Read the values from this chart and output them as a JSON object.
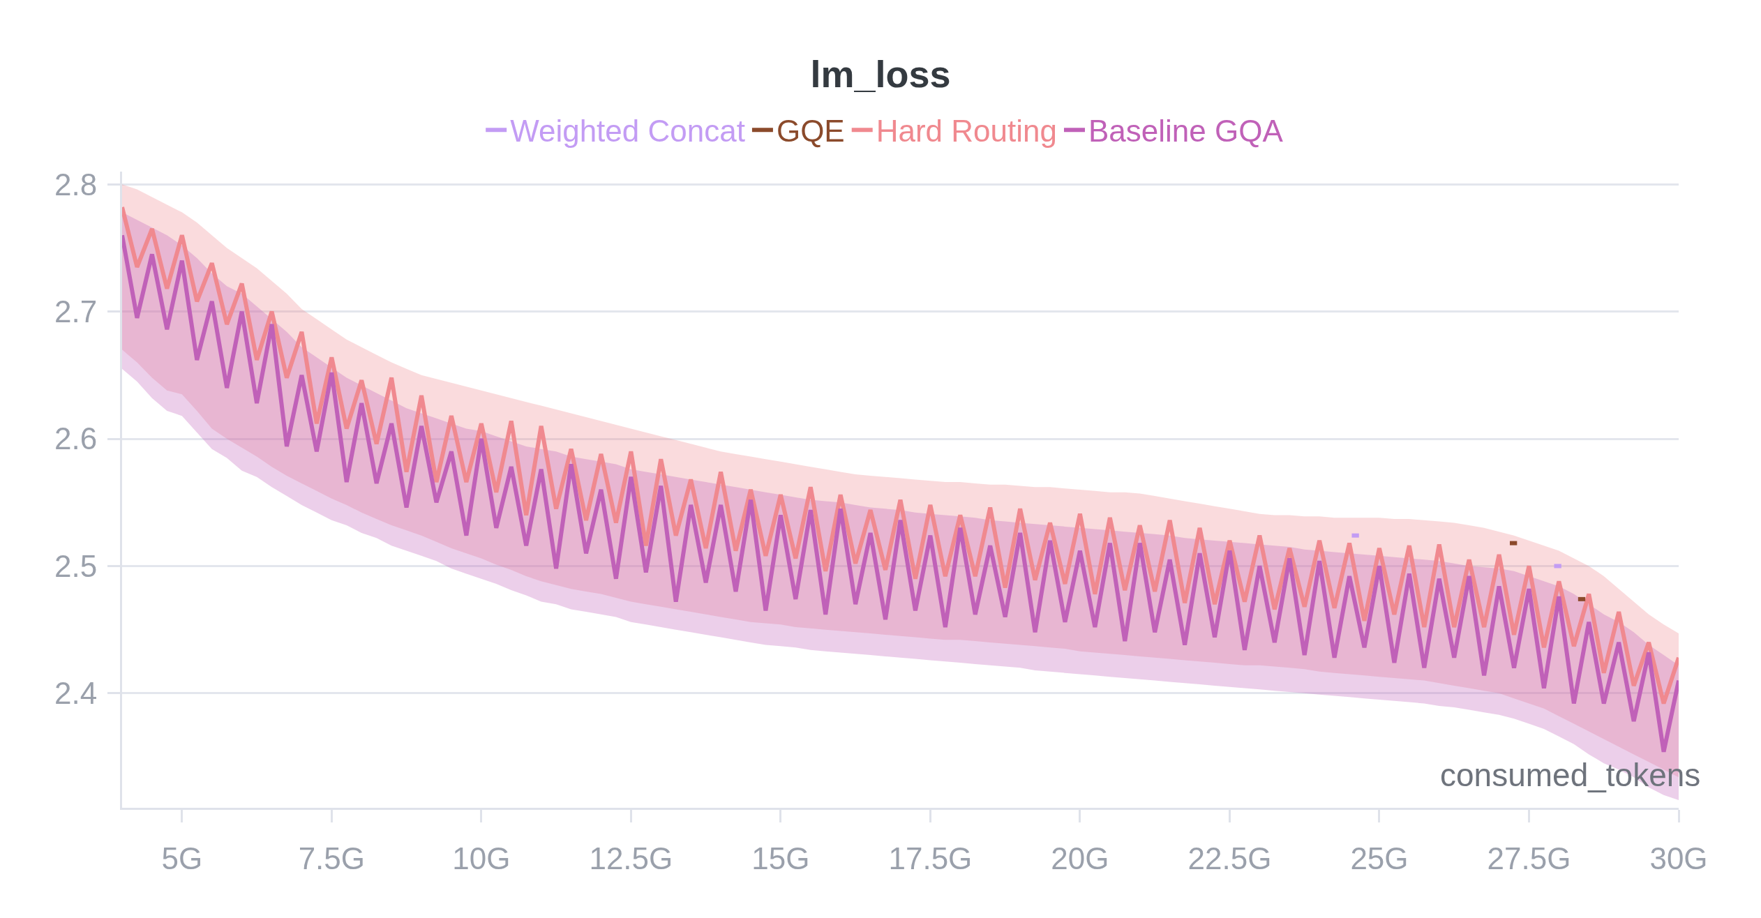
{
  "chart_data": {
    "type": "line",
    "title": "lm_loss",
    "xlabel": "consumed_tokens",
    "x": [
      4,
      4.25,
      4.5,
      4.75,
      5,
      5.25,
      5.5,
      5.75,
      6,
      6.25,
      6.5,
      6.75,
      7,
      7.25,
      7.5,
      7.75,
      8,
      8.25,
      8.5,
      8.75,
      9,
      9.25,
      9.5,
      9.75,
      10,
      10.25,
      10.5,
      10.75,
      11,
      11.25,
      11.5,
      11.75,
      12,
      12.25,
      12.5,
      12.75,
      13,
      13.25,
      13.5,
      13.75,
      14,
      14.25,
      14.5,
      14.75,
      15,
      15.25,
      15.5,
      15.75,
      16,
      16.25,
      16.5,
      16.75,
      17,
      17.25,
      17.5,
      17.75,
      18,
      18.25,
      18.5,
      18.75,
      19,
      19.25,
      19.5,
      19.75,
      20,
      20.25,
      20.5,
      20.75,
      21,
      21.25,
      21.5,
      21.75,
      22,
      22.25,
      22.5,
      22.75,
      23,
      23.25,
      23.5,
      23.75,
      24,
      24.25,
      24.5,
      24.75,
      25,
      25.25,
      25.5,
      25.75,
      26,
      26.25,
      26.5,
      26.75,
      27,
      27.25,
      27.5,
      27.75,
      28,
      28.25,
      28.5,
      28.75,
      29,
      29.25,
      29.5,
      29.75,
      30
    ],
    "series": [
      {
        "name": "Weighted Concat",
        "color": "#c39cf4",
        "x": [
          24.54,
          24.66,
          26.3,
          27.92,
          28.04
        ],
        "values": [
          2.524,
          2.524,
          null,
          2.5,
          2.5
        ]
      },
      {
        "name": "GQE",
        "color": "#8b4a2b",
        "x": [
          27.18,
          27.3,
          27.8,
          28.32,
          28.44
        ],
        "values": [
          2.518,
          2.518,
          null,
          2.474,
          2.474
        ]
      },
      {
        "name": "Hard Routing",
        "color": "#f0898f",
        "values": [
          2.782,
          2.735,
          2.765,
          2.718,
          2.76,
          2.708,
          2.738,
          2.69,
          2.722,
          2.662,
          2.7,
          2.648,
          2.684,
          2.612,
          2.664,
          2.608,
          2.646,
          2.596,
          2.648,
          2.574,
          2.634,
          2.566,
          2.618,
          2.566,
          2.612,
          2.558,
          2.614,
          2.54,
          2.61,
          2.545,
          2.592,
          2.536,
          2.588,
          2.534,
          2.59,
          2.516,
          2.584,
          2.524,
          2.568,
          2.514,
          2.574,
          2.512,
          2.56,
          2.508,
          2.556,
          2.506,
          2.562,
          2.496,
          2.556,
          2.502,
          2.544,
          2.497,
          2.552,
          2.49,
          2.548,
          2.492,
          2.54,
          2.492,
          2.546,
          2.483,
          2.545,
          2.489,
          2.534,
          2.486,
          2.541,
          2.478,
          2.538,
          2.481,
          2.532,
          2.48,
          2.536,
          2.471,
          2.53,
          2.47,
          2.52,
          2.472,
          2.524,
          2.466,
          2.514,
          2.468,
          2.52,
          2.467,
          2.518,
          2.457,
          2.514,
          2.462,
          2.516,
          2.452,
          2.517,
          2.452,
          2.505,
          2.452,
          2.509,
          2.446,
          2.5,
          2.436,
          2.488,
          2.437,
          2.478,
          2.416,
          2.464,
          2.406,
          2.44,
          2.392,
          2.428
        ],
        "upper": [
          2.8,
          2.796,
          2.79,
          2.784,
          2.778,
          2.77,
          2.76,
          2.75,
          2.742,
          2.734,
          2.724,
          2.714,
          2.702,
          2.694,
          2.686,
          2.678,
          2.672,
          2.666,
          2.66,
          2.655,
          2.65,
          2.647,
          2.644,
          2.641,
          2.638,
          2.635,
          2.632,
          2.629,
          2.626,
          2.623,
          2.62,
          2.617,
          2.614,
          2.611,
          2.608,
          2.605,
          2.602,
          2.599,
          2.596,
          2.593,
          2.59,
          2.588,
          2.586,
          2.584,
          2.582,
          2.58,
          2.578,
          2.576,
          2.574,
          2.572,
          2.571,
          2.57,
          2.569,
          2.568,
          2.567,
          2.566,
          2.566,
          2.565,
          2.564,
          2.564,
          2.563,
          2.562,
          2.562,
          2.561,
          2.56,
          2.559,
          2.558,
          2.558,
          2.557,
          2.555,
          2.553,
          2.551,
          2.549,
          2.547,
          2.545,
          2.543,
          2.541,
          2.54,
          2.54,
          2.539,
          2.539,
          2.538,
          2.538,
          2.538,
          2.538,
          2.537,
          2.537,
          2.536,
          2.535,
          2.534,
          2.532,
          2.53,
          2.527,
          2.524,
          2.52,
          2.516,
          2.512,
          2.506,
          2.5,
          2.492,
          2.482,
          2.472,
          2.462,
          2.454,
          2.447
        ],
        "lower": [
          2.67,
          2.66,
          2.648,
          2.638,
          2.635,
          2.622,
          2.608,
          2.6,
          2.593,
          2.586,
          2.578,
          2.571,
          2.565,
          2.559,
          2.553,
          2.548,
          2.542,
          2.537,
          2.532,
          2.528,
          2.524,
          2.519,
          2.514,
          2.51,
          2.506,
          2.501,
          2.497,
          2.492,
          2.488,
          2.485,
          2.482,
          2.48,
          2.478,
          2.475,
          2.472,
          2.47,
          2.468,
          2.466,
          2.464,
          2.462,
          2.46,
          2.458,
          2.456,
          2.455,
          2.454,
          2.452,
          2.451,
          2.45,
          2.449,
          2.448,
          2.447,
          2.446,
          2.445,
          2.444,
          2.443,
          2.442,
          2.442,
          2.441,
          2.44,
          2.439,
          2.438,
          2.437,
          2.436,
          2.435,
          2.433,
          2.432,
          2.431,
          2.43,
          2.429,
          2.428,
          2.427,
          2.426,
          2.425,
          2.424,
          2.423,
          2.422,
          2.422,
          2.421,
          2.42,
          2.419,
          2.417,
          2.416,
          2.415,
          2.414,
          2.413,
          2.412,
          2.411,
          2.41,
          2.408,
          2.406,
          2.404,
          2.402,
          2.4,
          2.396,
          2.392,
          2.388,
          2.382,
          2.376,
          2.37,
          2.364,
          2.358,
          2.352,
          2.346,
          2.34,
          2.334
        ]
      },
      {
        "name": "Baseline GQA",
        "color": "#c061b8",
        "values": [
          2.76,
          2.695,
          2.745,
          2.686,
          2.74,
          2.662,
          2.708,
          2.64,
          2.7,
          2.628,
          2.69,
          2.594,
          2.65,
          2.59,
          2.652,
          2.566,
          2.628,
          2.565,
          2.612,
          2.546,
          2.61,
          2.55,
          2.59,
          2.524,
          2.6,
          2.53,
          2.578,
          2.516,
          2.576,
          2.498,
          2.58,
          2.51,
          2.56,
          2.49,
          2.57,
          2.495,
          2.563,
          2.472,
          2.548,
          2.487,
          2.548,
          2.48,
          2.552,
          2.465,
          2.54,
          2.474,
          2.544,
          2.462,
          2.545,
          2.47,
          2.526,
          2.458,
          2.536,
          2.465,
          2.524,
          2.452,
          2.53,
          2.462,
          2.516,
          2.46,
          2.526,
          2.448,
          2.52,
          2.456,
          2.512,
          2.452,
          2.518,
          2.441,
          2.518,
          2.448,
          2.505,
          2.438,
          2.51,
          2.444,
          2.512,
          2.434,
          2.5,
          2.44,
          2.506,
          2.43,
          2.504,
          2.428,
          2.492,
          2.436,
          2.5,
          2.424,
          2.494,
          2.42,
          2.49,
          2.428,
          2.492,
          2.414,
          2.484,
          2.42,
          2.482,
          2.404,
          2.476,
          2.392,
          2.456,
          2.392,
          2.44,
          2.378,
          2.432,
          2.354,
          2.41
        ],
        "upper": [
          2.778,
          2.772,
          2.766,
          2.76,
          2.752,
          2.742,
          2.73,
          2.72,
          2.714,
          2.704,
          2.694,
          2.684,
          2.672,
          2.664,
          2.656,
          2.648,
          2.642,
          2.636,
          2.63,
          2.624,
          2.62,
          2.616,
          2.612,
          2.608,
          2.606,
          2.602,
          2.598,
          2.594,
          2.592,
          2.59,
          2.586,
          2.584,
          2.582,
          2.58,
          2.576,
          2.574,
          2.572,
          2.57,
          2.568,
          2.566,
          2.564,
          2.562,
          2.56,
          2.558,
          2.556,
          2.554,
          2.552,
          2.551,
          2.55,
          2.548,
          2.546,
          2.545,
          2.544,
          2.542,
          2.541,
          2.54,
          2.539,
          2.538,
          2.536,
          2.535,
          2.534,
          2.533,
          2.532,
          2.531,
          2.53,
          2.529,
          2.528,
          2.527,
          2.526,
          2.525,
          2.524,
          2.522,
          2.521,
          2.52,
          2.519,
          2.518,
          2.517,
          2.516,
          2.515,
          2.513,
          2.512,
          2.511,
          2.51,
          2.509,
          2.508,
          2.507,
          2.506,
          2.505,
          2.504,
          2.502,
          2.5,
          2.499,
          2.498,
          2.496,
          2.492,
          2.488,
          2.484,
          2.478,
          2.47,
          2.462,
          2.456,
          2.448,
          2.438,
          2.43,
          2.422
        ],
        "lower": [
          2.655,
          2.645,
          2.632,
          2.622,
          2.618,
          2.605,
          2.592,
          2.585,
          2.575,
          2.57,
          2.562,
          2.555,
          2.548,
          2.542,
          2.536,
          2.532,
          2.526,
          2.522,
          2.516,
          2.512,
          2.508,
          2.504,
          2.498,
          2.494,
          2.49,
          2.486,
          2.481,
          2.477,
          2.472,
          2.47,
          2.466,
          2.464,
          2.462,
          2.46,
          2.456,
          2.454,
          2.452,
          2.45,
          2.448,
          2.446,
          2.444,
          2.442,
          2.44,
          2.438,
          2.437,
          2.436,
          2.434,
          2.433,
          2.432,
          2.431,
          2.43,
          2.429,
          2.428,
          2.427,
          2.426,
          2.425,
          2.424,
          2.423,
          2.422,
          2.421,
          2.42,
          2.418,
          2.417,
          2.416,
          2.415,
          2.414,
          2.413,
          2.412,
          2.411,
          2.41,
          2.409,
          2.408,
          2.407,
          2.406,
          2.405,
          2.404,
          2.403,
          2.402,
          2.401,
          2.4,
          2.399,
          2.398,
          2.397,
          2.396,
          2.395,
          2.394,
          2.393,
          2.392,
          2.39,
          2.389,
          2.387,
          2.385,
          2.383,
          2.38,
          2.376,
          2.372,
          2.366,
          2.36,
          2.352,
          2.345,
          2.34,
          2.334,
          2.326,
          2.32,
          2.316
        ]
      }
    ],
    "xlim": [
      4,
      30
    ],
    "xticks": [
      {
        "value": 5,
        "label": "5G"
      },
      {
        "value": 7.5,
        "label": "7.5G"
      },
      {
        "value": 10,
        "label": "10G"
      },
      {
        "value": 12.5,
        "label": "12.5G"
      },
      {
        "value": 15,
        "label": "15G"
      },
      {
        "value": 17.5,
        "label": "17.5G"
      },
      {
        "value": 20,
        "label": "20G"
      },
      {
        "value": 22.5,
        "label": "22.5G"
      },
      {
        "value": 25,
        "label": "25G"
      },
      {
        "value": 27.5,
        "label": "27.5G"
      },
      {
        "value": 30,
        "label": "30G"
      }
    ],
    "ylim": [
      2.31,
      2.81
    ],
    "yticks": [
      2.4,
      2.5,
      2.6,
      2.7,
      2.8
    ],
    "grid": "y",
    "legend": "top"
  }
}
